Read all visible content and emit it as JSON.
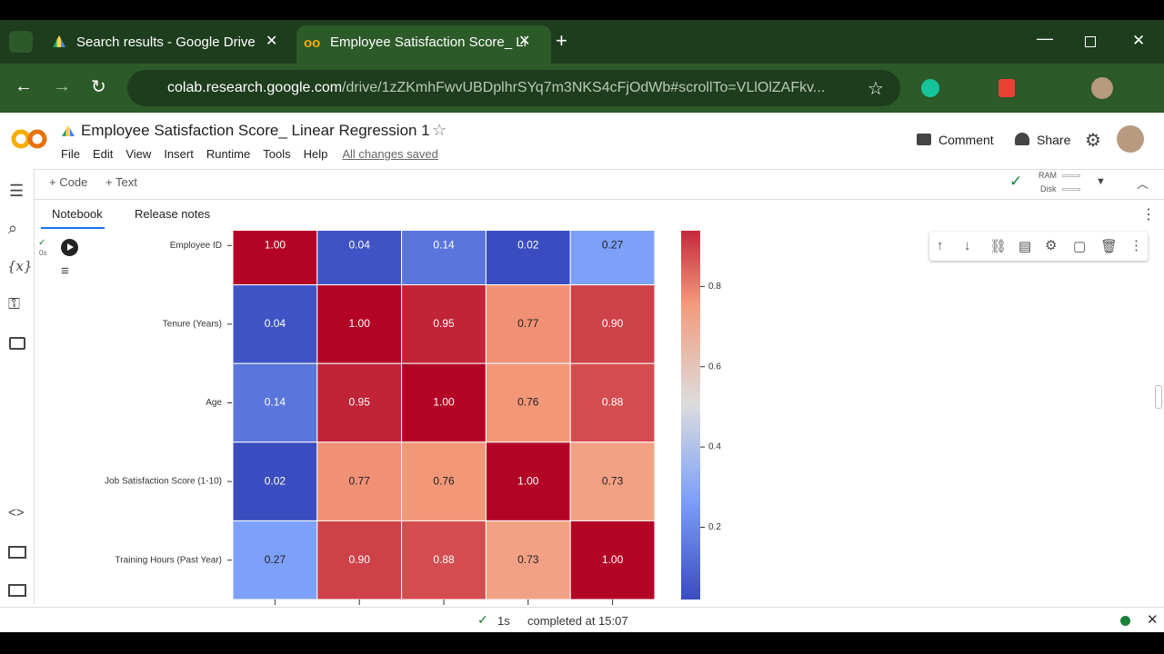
{
  "browser": {
    "tabs": [
      "Search results - Google Drive",
      "Employee Satisfaction Score_ Li"
    ],
    "url_host": "colab.research.google.com",
    "url_path": "/drive/1zZKmhFwvUBDplhrSYq7m3NKS4cFjOdWb#scrollTo=VLlOlZAFkv..."
  },
  "colab": {
    "title": "Employee Satisfaction Score_ Linear Regression 1",
    "menu": [
      "File",
      "Edit",
      "View",
      "Insert",
      "Runtime",
      "Tools",
      "Help"
    ],
    "save_status": "All changes saved",
    "comment": "Comment",
    "share": "Share",
    "add_code": "Code",
    "add_text": "Text",
    "resources": [
      "RAM",
      "Disk"
    ],
    "tabs": [
      "Notebook",
      "Release notes"
    ],
    "variables_icon": "{x}",
    "cell_time": "0s"
  },
  "status": {
    "duration": "1s",
    "message": "completed at 15:07"
  },
  "chart_data": {
    "type": "heatmap",
    "y_categories": [
      "Employee ID",
      "Tenure (Years)",
      "Age",
      "Job Satisfaction Score (1-10)",
      "Training Hours (Past Year)"
    ],
    "values": [
      [
        1.0,
        0.04,
        0.14,
        0.02,
        0.27
      ],
      [
        0.04,
        1.0,
        0.95,
        0.77,
        0.9
      ],
      [
        0.14,
        0.95,
        1.0,
        0.76,
        0.88
      ],
      [
        0.02,
        0.77,
        0.76,
        1.0,
        0.73
      ],
      [
        0.27,
        0.9,
        0.88,
        0.73,
        1.0
      ]
    ],
    "value_labels": [
      [
        "1.00",
        "0.04",
        "0.14",
        "0.02",
        "0.27"
      ],
      [
        "0.04",
        "1.00",
        "0.95",
        "0.77",
        "0.90"
      ],
      [
        "0.14",
        "0.95",
        "1.00",
        "0.76",
        "0.88"
      ],
      [
        "0.02",
        "0.77",
        "0.76",
        "1.00",
        "0.73"
      ],
      [
        "0.27",
        "0.90",
        "0.88",
        "0.73",
        "1.00"
      ]
    ],
    "clim": [
      0.02,
      1.0
    ],
    "cbar_ticks": [
      0.2,
      0.4,
      0.6,
      0.8
    ],
    "colormap": [
      "#3b4cc0",
      "#7b9ff9",
      "#dddddd",
      "#f49a7b",
      "#b40426"
    ]
  }
}
